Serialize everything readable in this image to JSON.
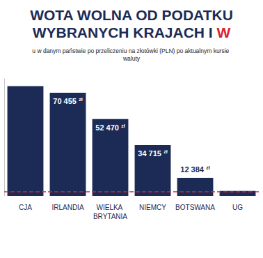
{
  "chart_data": {
    "type": "bar",
    "title": [
      "WOTA WOLNA OD PODATKU",
      "WYBRANYCH KRAJACH I W"
    ],
    "subtitle": "u w danym państwie po przeliczeniu na złotówki (PLN) po aktualnym kursie waluty",
    "categories": [
      "CJA",
      "IRLANDIA",
      "WIELKA BRYTANIA",
      "NIEMCY",
      "BOTSWANA",
      "UG"
    ],
    "values": [
      75000,
      70455,
      52470,
      34715,
      12384,
      3500
    ],
    "value_labels": [
      null,
      "70 455 zł",
      "52 470 zł",
      "34 715 zł",
      "12 384 zł",
      null
    ],
    "color": "#1c2b55",
    "ylim": [
      0,
      80000
    ],
    "data_labels": true,
    "tick_labels": "x",
    "grid": false,
    "reference_line": {
      "value": 3091,
      "color": "#d9232d",
      "line_style": "dashed"
    }
  }
}
